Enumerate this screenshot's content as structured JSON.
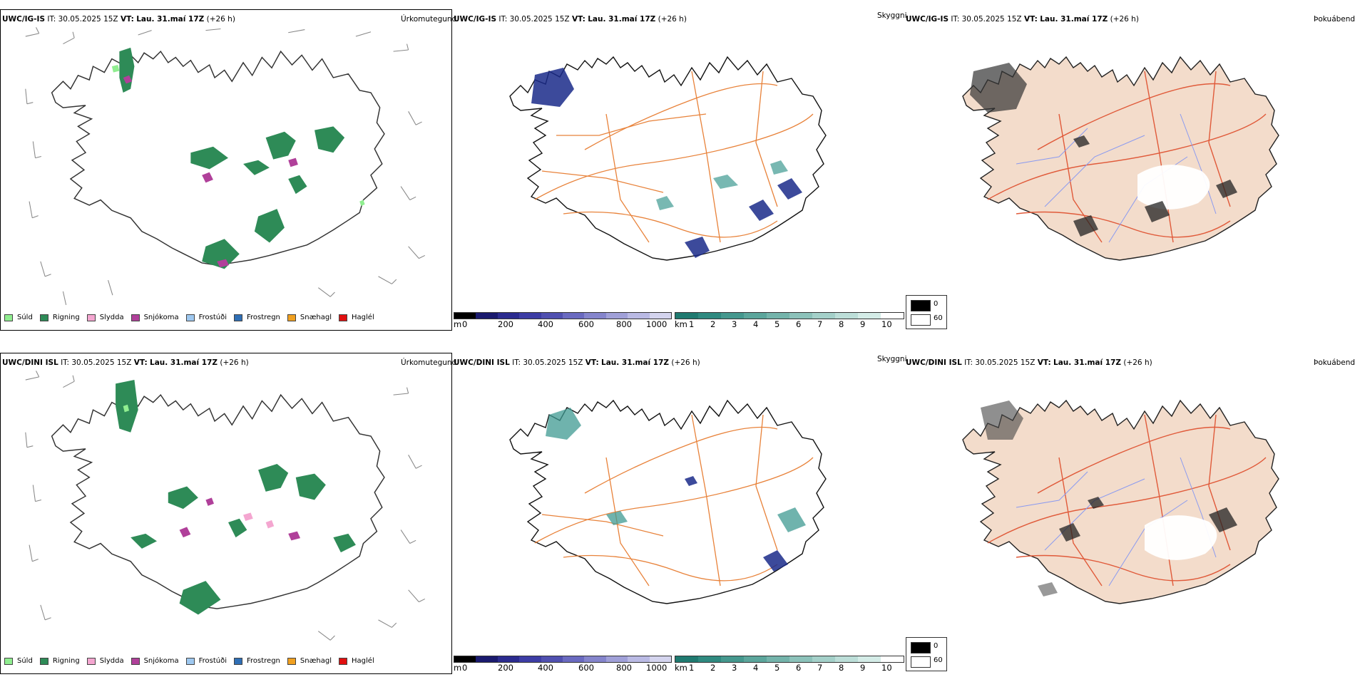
{
  "rows": [
    {
      "model": "UWC/IG-IS",
      "it_label": "IT:",
      "it_value": "30.05.2025 15Z",
      "vt_label": "VT:",
      "vt_value": "Lau. 31.maí 17Z",
      "lead": "(+26 h)",
      "precip_title": "Úrkomutegund",
      "cloud_title": "Skyggni",
      "fog_title": "Þokuábendi"
    },
    {
      "model": "UWC/DINI ISL",
      "it_label": "IT:",
      "it_value": "30.05.2025 15Z",
      "vt_label": "VT:",
      "vt_value": "Lau. 31.maí 17Z",
      "lead": "(+26 h)",
      "precip_title": "Úrkomutegund",
      "cloud_title": "Skyggni",
      "fog_title": "Þokuábendi"
    }
  ],
  "precip_legend": [
    {
      "label": "Súld",
      "color": "#90ee90"
    },
    {
      "label": "Rigning",
      "color": "#2e8b57"
    },
    {
      "label": "Slydda",
      "color": "#f4a6d0"
    },
    {
      "label": "Snjókoma",
      "color": "#b0409a"
    },
    {
      "label": "Frostúði",
      "color": "#9ec8f0"
    },
    {
      "label": "Frostregn",
      "color": "#2f6fb5"
    },
    {
      "label": "Snæhagl",
      "color": "#f0a020"
    },
    {
      "label": "Haglél",
      "color": "#e01010"
    }
  ],
  "height_scale": {
    "unit": "m",
    "ticks": [
      "0",
      "200",
      "400",
      "600",
      "800",
      "1000"
    ],
    "colors": [
      "#000000",
      "#1a1a6e",
      "#2b2b8f",
      "#3d3da5",
      "#5050b0",
      "#6a6ac0",
      "#8585cc",
      "#a0a0d8",
      "#babae4",
      "#d4d4ee"
    ]
  },
  "vis_scale": {
    "unit": "km",
    "ticks": [
      "1",
      "2",
      "3",
      "4",
      "5",
      "6",
      "7",
      "8",
      "9",
      "10"
    ],
    "colors": [
      "#1f7a70",
      "#2f8a80",
      "#45988e",
      "#5ca69c",
      "#74b4ab",
      "#8cc2ba",
      "#a4d0c9",
      "#bcded8",
      "#d4ece7",
      "#ffffff"
    ]
  },
  "fog_scale": {
    "items": [
      {
        "label": "0",
        "color": "#000000"
      },
      {
        "label": "60",
        "color": "#ffffff"
      }
    ]
  },
  "colors": {
    "rain": "#2e8b57",
    "snow": "#b0409a",
    "sleet": "#f4a6d0",
    "drizzle": "#90ee90",
    "roads": "#e8823a",
    "fog_land": "#f3dccb",
    "fog_roads": "#e05a3a",
    "rivers": "#8a9af0",
    "vis_dark": "#1a2a8a",
    "vis_teal": "#3f9a92"
  }
}
